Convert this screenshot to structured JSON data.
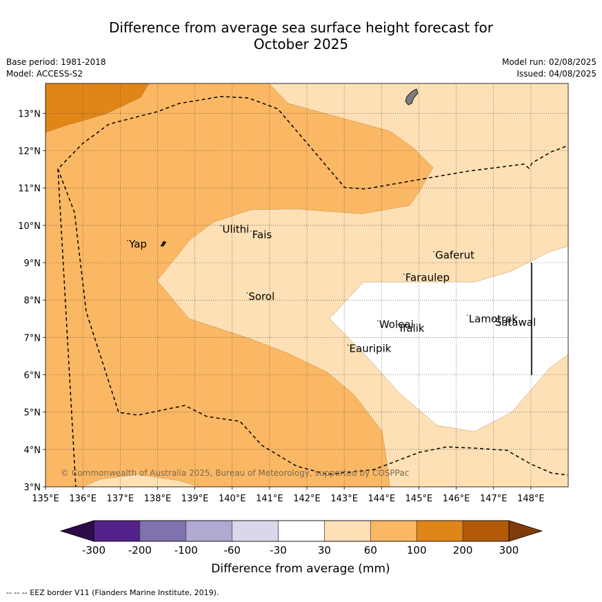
{
  "header": {
    "title_line1": "Difference from average sea surface height forecast for",
    "title_line2": "October 2025",
    "base_period": "Base period: 1981-2018",
    "model": "Model: ACCESS-S2",
    "model_run": "Model run: 02/08/2025",
    "issued": "Issued: 04/08/2025"
  },
  "map": {
    "lon_labels": [
      "135°E",
      "136°E",
      "137°E",
      "138°E",
      "139°E",
      "140°E",
      "141°E",
      "142°E",
      "143°E",
      "144°E",
      "145°E",
      "146°E",
      "147°E",
      "148°E"
    ],
    "lat_labels": [
      "3°N",
      "4°N",
      "5°N",
      "6°N",
      "7°N",
      "8°N",
      "9°N",
      "10°N",
      "11°N",
      "12°N",
      "13°N"
    ],
    "places": [
      {
        "name": "Yap",
        "lon": 137.2,
        "lat": 9.5
      },
      {
        "name": "Ulithi",
        "lon": 139.7,
        "lat": 9.9
      },
      {
        "name": "Fais",
        "lon": 140.5,
        "lat": 9.75
      },
      {
        "name": "Sorol",
        "lon": 140.4,
        "lat": 8.1
      },
      {
        "name": "Gaferut",
        "lon": 145.4,
        "lat": 9.2
      },
      {
        "name": "Faraulep",
        "lon": 144.6,
        "lat": 8.6
      },
      {
        "name": "Woleai",
        "lon": 143.9,
        "lat": 7.35
      },
      {
        "name": "Ifalik",
        "lon": 144.45,
        "lat": 7.25
      },
      {
        "name": "Lamotrek",
        "lon": 146.3,
        "lat": 7.5
      },
      {
        "name": "Satawal",
        "lon": 147.0,
        "lat": 7.4
      },
      {
        "name": "Eauripik",
        "lon": 143.1,
        "lat": 6.7
      }
    ],
    "copyright": "© Commonwealth of Australia 2025, Bureau of Meteorology, supported by COSPPac"
  },
  "legend": {
    "ticks": [
      "-300",
      "-200",
      "-100",
      "-60",
      "-30",
      "30",
      "60",
      "100",
      "200",
      "300"
    ],
    "colors": [
      "#52218a",
      "#7f72ae",
      "#b1a9d2",
      "#d8d8ea",
      "#ffffff",
      "#fde0b5",
      "#fbb864",
      "#e08619",
      "#b35906"
    ],
    "under_color": "#2d0a4a",
    "over_color": "#7f3b08",
    "label": "Difference from average (mm)"
  },
  "footer": {
    "eez_note": "--  --  -- EEZ border V11 (Flanders Marine Institute, 2019)."
  }
}
